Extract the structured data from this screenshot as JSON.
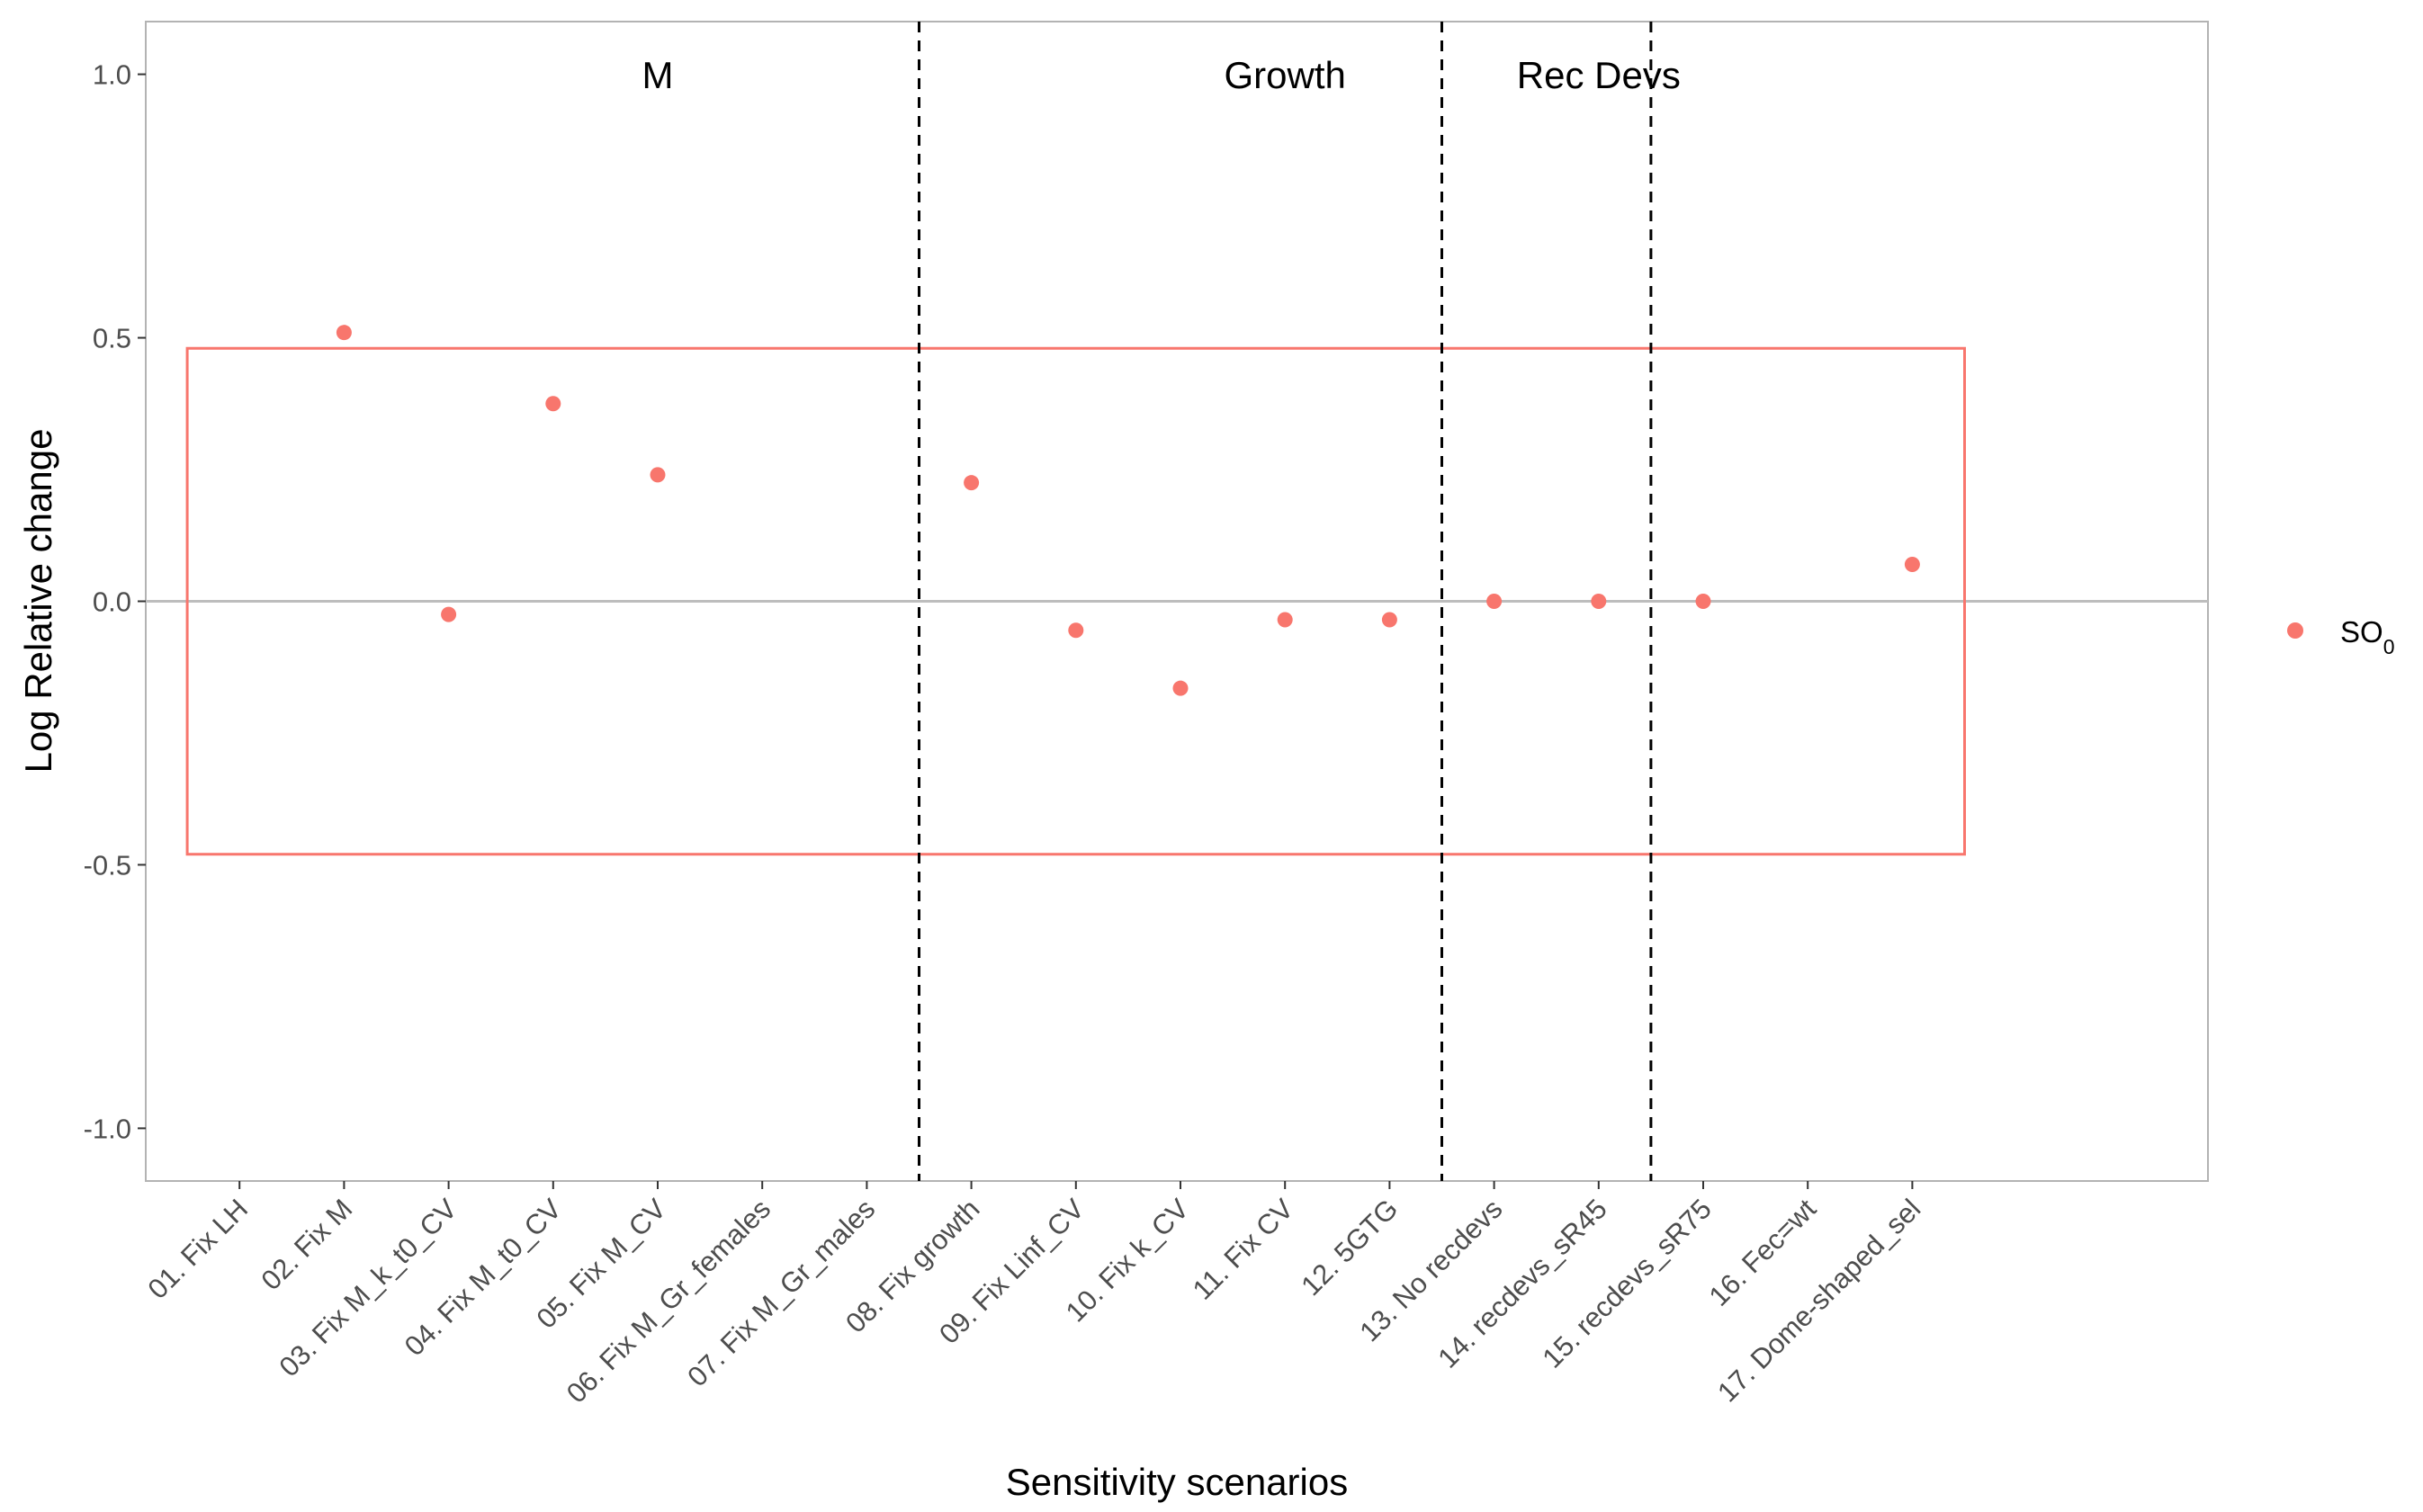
{
  "chart_data": {
    "type": "scatter",
    "title": "",
    "xlabel": "Sensitivity scenarios",
    "ylabel": "Log Relative change",
    "ylim": [
      -1.1,
      1.1
    ],
    "yticks": [
      -1.0,
      -0.5,
      0.0,
      0.5,
      1.0
    ],
    "ytick_labels": [
      "-1.0",
      "-0.5",
      "0.0",
      "0.5",
      "1.0"
    ],
    "categories": [
      "01. Fix LH",
      "02. Fix M",
      "03. Fix M_k_t0_CV",
      "04. Fix M_t0_CV",
      "05. Fix M_CV",
      "06. Fix M_Gr_females",
      "07. Fix M_Gr_males",
      "08. Fix growth",
      "09. Fix Linf_CV",
      "10. Fix k_CV",
      "11. Fix CV",
      "12. 5GTG",
      "13. No recdevs",
      "14. recdevs_sR45",
      "15. recdevs_sR75",
      "16. Fec=wt",
      "17. Dome-shaped_sel"
    ],
    "series": [
      {
        "name": "SO",
        "name_subscript": "0",
        "color": "#f8766d",
        "values": [
          null,
          0.51,
          -0.025,
          0.375,
          0.24,
          null,
          null,
          0.225,
          -0.055,
          -0.165,
          -0.035,
          -0.035,
          0.0,
          0.0,
          0.0,
          null,
          0.07
        ]
      }
    ],
    "reference_line": {
      "y": 0.0,
      "color": "#bdbdbd"
    },
    "band": {
      "ymin": -0.48,
      "ymax": 0.48,
      "x_from": 0.5,
      "x_to": 17.5,
      "color": "#f8766d"
    },
    "group_dividers": [
      7.5,
      12.5,
      14.5
    ],
    "groups": [
      {
        "label": "M",
        "x": 5
      },
      {
        "label": "Growth",
        "x": 11
      },
      {
        "label": "Rec Devs",
        "x": 14
      }
    ],
    "grid": false,
    "legend_position": "right"
  }
}
